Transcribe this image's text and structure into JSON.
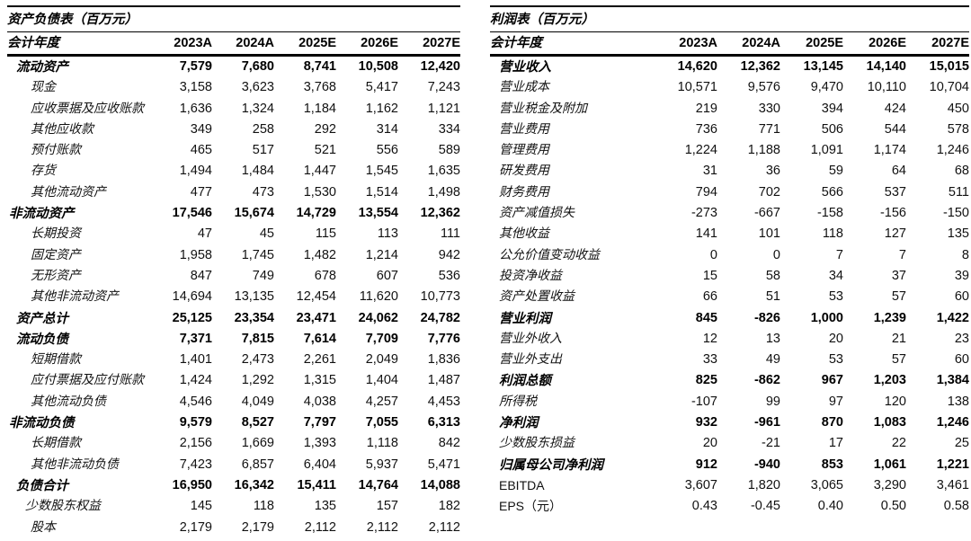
{
  "columns": [
    "2023A",
    "2024A",
    "2025E",
    "2026E",
    "2027E"
  ],
  "balance_sheet": {
    "title": "资产负债表（百万元）",
    "header_label": "会计年度",
    "rows": [
      {
        "label": "流动资产",
        "bold": true,
        "indent": 1,
        "values": [
          "7,579",
          "7,680",
          "8,741",
          "10,508",
          "12,420"
        ]
      },
      {
        "label": "现金",
        "bold": false,
        "indent": 3,
        "values": [
          "3,158",
          "3,623",
          "3,768",
          "5,417",
          "7,243"
        ]
      },
      {
        "label": "应收票据及应收账款",
        "bold": false,
        "indent": 3,
        "values": [
          "1,636",
          "1,324",
          "1,184",
          "1,162",
          "1,121"
        ]
      },
      {
        "label": "其他应收款",
        "bold": false,
        "indent": 3,
        "values": [
          "349",
          "258",
          "292",
          "314",
          "334"
        ]
      },
      {
        "label": "预付账款",
        "bold": false,
        "indent": 3,
        "values": [
          "465",
          "517",
          "521",
          "556",
          "589"
        ]
      },
      {
        "label": "存货",
        "bold": false,
        "indent": 3,
        "values": [
          "1,494",
          "1,484",
          "1,447",
          "1,545",
          "1,635"
        ]
      },
      {
        "label": "其他流动资产",
        "bold": false,
        "indent": 3,
        "values": [
          "477",
          "473",
          "1,530",
          "1,514",
          "1,498"
        ]
      },
      {
        "label": "非流动资产",
        "bold": true,
        "indent": 0,
        "values": [
          "17,546",
          "15,674",
          "14,729",
          "13,554",
          "12,362"
        ]
      },
      {
        "label": "长期投资",
        "bold": false,
        "indent": 3,
        "values": [
          "47",
          "45",
          "115",
          "113",
          "111"
        ]
      },
      {
        "label": "固定资产",
        "bold": false,
        "indent": 3,
        "values": [
          "1,958",
          "1,745",
          "1,482",
          "1,214",
          "942"
        ]
      },
      {
        "label": "无形资产",
        "bold": false,
        "indent": 3,
        "values": [
          "847",
          "749",
          "678",
          "607",
          "536"
        ]
      },
      {
        "label": "其他非流动资产",
        "bold": false,
        "indent": 3,
        "values": [
          "14,694",
          "13,135",
          "12,454",
          "11,620",
          "10,773"
        ]
      },
      {
        "label": "资产总计",
        "bold": true,
        "indent": 1,
        "values": [
          "25,125",
          "23,354",
          "23,471",
          "24,062",
          "24,782"
        ]
      },
      {
        "label": "流动负债",
        "bold": true,
        "indent": 1,
        "values": [
          "7,371",
          "7,815",
          "7,614",
          "7,709",
          "7,776"
        ]
      },
      {
        "label": "短期借款",
        "bold": false,
        "indent": 3,
        "values": [
          "1,401",
          "2,473",
          "2,261",
          "2,049",
          "1,836"
        ]
      },
      {
        "label": "应付票据及应付账款",
        "bold": false,
        "indent": 3,
        "values": [
          "1,424",
          "1,292",
          "1,315",
          "1,404",
          "1,487"
        ]
      },
      {
        "label": "其他流动负债",
        "bold": false,
        "indent": 3,
        "values": [
          "4,546",
          "4,049",
          "4,038",
          "4,257",
          "4,453"
        ]
      },
      {
        "label": "非流动负债",
        "bold": true,
        "indent": 0,
        "values": [
          "9,579",
          "8,527",
          "7,797",
          "7,055",
          "6,313"
        ]
      },
      {
        "label": "长期借款",
        "bold": false,
        "indent": 3,
        "values": [
          "2,156",
          "1,669",
          "1,393",
          "1,118",
          "842"
        ]
      },
      {
        "label": "其他非流动负债",
        "bold": false,
        "indent": 3,
        "values": [
          "7,423",
          "6,857",
          "6,404",
          "5,937",
          "5,471"
        ]
      },
      {
        "label": "负债合计",
        "bold": true,
        "indent": 1,
        "values": [
          "16,950",
          "16,342",
          "15,411",
          "14,764",
          "14,088"
        ]
      },
      {
        "label": "少数股东权益",
        "bold": false,
        "indent": 2,
        "values": [
          "145",
          "118",
          "135",
          "157",
          "182"
        ]
      },
      {
        "label": "股本",
        "bold": false,
        "indent": 3,
        "values": [
          "2,179",
          "2,179",
          "2,112",
          "2,112",
          "2,112"
        ]
      }
    ]
  },
  "income_statement": {
    "title": "利润表（百万元）",
    "header_label": "会计年度",
    "rows": [
      {
        "label": "营业收入",
        "bold": true,
        "indent": 1,
        "values": [
          "14,620",
          "12,362",
          "13,145",
          "14,140",
          "15,015"
        ]
      },
      {
        "label": "营业成本",
        "bold": false,
        "indent": 1,
        "values": [
          "10,571",
          "9,576",
          "9,470",
          "10,110",
          "10,704"
        ]
      },
      {
        "label": "营业税金及附加",
        "bold": false,
        "indent": 1,
        "values": [
          "219",
          "330",
          "394",
          "424",
          "450"
        ]
      },
      {
        "label": "营业费用",
        "bold": false,
        "indent": 1,
        "values": [
          "736",
          "771",
          "506",
          "544",
          "578"
        ]
      },
      {
        "label": "管理费用",
        "bold": false,
        "indent": 1,
        "values": [
          "1,224",
          "1,188",
          "1,091",
          "1,174",
          "1,246"
        ]
      },
      {
        "label": "研发费用",
        "bold": false,
        "indent": 1,
        "values": [
          "31",
          "36",
          "59",
          "64",
          "68"
        ]
      },
      {
        "label": "财务费用",
        "bold": false,
        "indent": 1,
        "values": [
          "794",
          "702",
          "566",
          "537",
          "511"
        ]
      },
      {
        "label": "资产减值损失",
        "bold": false,
        "indent": 1,
        "values": [
          "-273",
          "-667",
          "-158",
          "-156",
          "-150"
        ]
      },
      {
        "label": "其他收益",
        "bold": false,
        "indent": 1,
        "values": [
          "141",
          "101",
          "118",
          "127",
          "135"
        ]
      },
      {
        "label": "公允价值变动收益",
        "bold": false,
        "indent": 1,
        "values": [
          "0",
          "0",
          "7",
          "7",
          "8"
        ]
      },
      {
        "label": "投资净收益",
        "bold": false,
        "indent": 1,
        "values": [
          "15",
          "58",
          "34",
          "37",
          "39"
        ]
      },
      {
        "label": "资产处置收益",
        "bold": false,
        "indent": 1,
        "values": [
          "66",
          "51",
          "53",
          "57",
          "60"
        ]
      },
      {
        "label": "营业利润",
        "bold": true,
        "indent": 1,
        "values": [
          "845",
          "-826",
          "1,000",
          "1,239",
          "1,422"
        ]
      },
      {
        "label": "营业外收入",
        "bold": false,
        "indent": 1,
        "values": [
          "12",
          "13",
          "20",
          "21",
          "23"
        ]
      },
      {
        "label": "营业外支出",
        "bold": false,
        "indent": 1,
        "values": [
          "33",
          "49",
          "53",
          "57",
          "60"
        ]
      },
      {
        "label": "利润总额",
        "bold": true,
        "indent": 1,
        "values": [
          "825",
          "-862",
          "967",
          "1,203",
          "1,384"
        ]
      },
      {
        "label": "所得税",
        "bold": false,
        "indent": 1,
        "values": [
          "-107",
          "99",
          "97",
          "120",
          "138"
        ]
      },
      {
        "label": "净利润",
        "bold": true,
        "indent": 1,
        "values": [
          "932",
          "-961",
          "870",
          "1,083",
          "1,246"
        ]
      },
      {
        "label": "少数股东损益",
        "bold": false,
        "indent": 1,
        "values": [
          "20",
          "-21",
          "17",
          "22",
          "25"
        ]
      },
      {
        "label": "归属母公司净利润",
        "bold": true,
        "indent": 1,
        "values": [
          "912",
          "-940",
          "853",
          "1,061",
          "1,221"
        ]
      },
      {
        "label": "EBITDA",
        "bold": false,
        "indent": 1,
        "latin": true,
        "values": [
          "3,607",
          "1,820",
          "3,065",
          "3,290",
          "3,461"
        ]
      },
      {
        "label": "EPS（元）",
        "bold": false,
        "indent": 1,
        "latin": true,
        "values": [
          "0.43",
          "-0.45",
          "0.40",
          "0.50",
          "0.58"
        ]
      }
    ]
  }
}
